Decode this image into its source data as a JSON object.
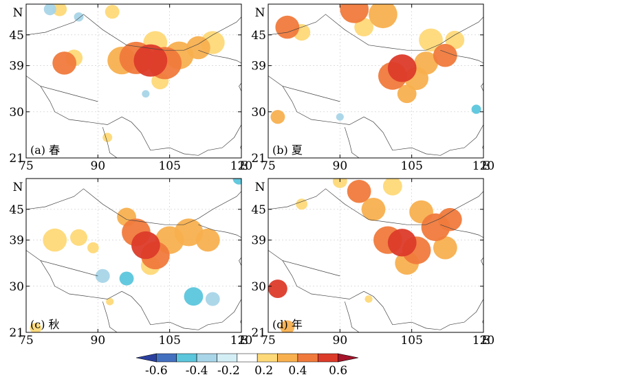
{
  "chart_data": {
    "type": "heatmap",
    "x_unit": "E",
    "y_unit": "N",
    "xlim": [
      75,
      120
    ],
    "ylim": [
      21,
      51
    ],
    "x_ticks": [
      75,
      90,
      105,
      120
    ],
    "y_ticks": [
      21,
      30,
      39,
      45
    ],
    "x_tick_labels": [
      "75",
      "90",
      "105",
      "120"
    ],
    "y_tick_labels": [
      "21",
      "30",
      "39",
      "45"
    ],
    "panels": [
      {
        "label": "(a) 春",
        "cells": [
          {
            "lon": 101,
            "lat": 40,
            "r": 3.5,
            "v": 0.6
          },
          {
            "lon": 98,
            "lat": 40.5,
            "r": 3.5,
            "v": 0.5
          },
          {
            "lon": 104,
            "lat": 39.5,
            "r": 3.5,
            "v": 0.5
          },
          {
            "lon": 107,
            "lat": 41,
            "r": 3,
            "v": 0.4
          },
          {
            "lon": 95,
            "lat": 40,
            "r": 3,
            "v": 0.4
          },
          {
            "lon": 111,
            "lat": 42.5,
            "r": 2.5,
            "v": 0.4
          },
          {
            "lon": 114,
            "lat": 43.5,
            "r": 2.5,
            "v": 0.3
          },
          {
            "lon": 102,
            "lat": 43.5,
            "r": 2.5,
            "v": 0.3
          },
          {
            "lon": 83,
            "lat": 39.5,
            "r": 2.5,
            "v": 0.5
          },
          {
            "lon": 85,
            "lat": 40.5,
            "r": 1.8,
            "v": 0.3
          },
          {
            "lon": 103,
            "lat": 36,
            "r": 1.8,
            "v": 0.3
          },
          {
            "lon": 82,
            "lat": 50,
            "r": 1.5,
            "v": 0.3
          },
          {
            "lon": 93,
            "lat": 49.5,
            "r": 1.5,
            "v": 0.3
          },
          {
            "lon": 80,
            "lat": 50,
            "r": 1.3,
            "v": -0.3
          },
          {
            "lon": 86,
            "lat": 48.5,
            "r": 1,
            "v": -0.3
          },
          {
            "lon": 100,
            "lat": 33.5,
            "r": 0.8,
            "v": -0.3
          },
          {
            "lon": 92,
            "lat": 25,
            "r": 1,
            "v": 0.3
          }
        ]
      },
      {
        "label": "(b) 夏",
        "cells": [
          {
            "lon": 103,
            "lat": 38.5,
            "r": 3,
            "v": 0.6
          },
          {
            "lon": 101,
            "lat": 37,
            "r": 3,
            "v": 0.5
          },
          {
            "lon": 106,
            "lat": 36.5,
            "r": 2.5,
            "v": 0.4
          },
          {
            "lon": 108,
            "lat": 39.5,
            "r": 2.5,
            "v": 0.4
          },
          {
            "lon": 104,
            "lat": 33.5,
            "r": 2,
            "v": 0.4
          },
          {
            "lon": 112,
            "lat": 41,
            "r": 2.5,
            "v": 0.5
          },
          {
            "lon": 109,
            "lat": 44,
            "r": 2.5,
            "v": 0.3
          },
          {
            "lon": 114,
            "lat": 44,
            "r": 2,
            "v": 0.3
          },
          {
            "lon": 79,
            "lat": 46.5,
            "r": 2.5,
            "v": 0.5
          },
          {
            "lon": 82,
            "lat": 45.5,
            "r": 1.8,
            "v": 0.3
          },
          {
            "lon": 93,
            "lat": 50,
            "r": 3,
            "v": 0.5
          },
          {
            "lon": 99,
            "lat": 49,
            "r": 3,
            "v": 0.4
          },
          {
            "lon": 95,
            "lat": 46.5,
            "r": 2,
            "v": 0.3
          },
          {
            "lon": 77,
            "lat": 29,
            "r": 1.5,
            "v": 0.4
          },
          {
            "lon": 118.5,
            "lat": 30.5,
            "r": 1,
            "v": -0.4
          },
          {
            "lon": 90,
            "lat": 29,
            "r": 0.8,
            "v": -0.3
          }
        ]
      },
      {
        "label": "(c) 秋",
        "cells": [
          {
            "lon": 100,
            "lat": 38,
            "r": 3,
            "v": 0.6
          },
          {
            "lon": 98,
            "lat": 40.5,
            "r": 3,
            "v": 0.5
          },
          {
            "lon": 102,
            "lat": 36,
            "r": 3,
            "v": 0.5
          },
          {
            "lon": 105,
            "lat": 39,
            "r": 3,
            "v": 0.4
          },
          {
            "lon": 96,
            "lat": 43.5,
            "r": 2,
            "v": 0.4
          },
          {
            "lon": 109,
            "lat": 40.5,
            "r": 3,
            "v": 0.4
          },
          {
            "lon": 113,
            "lat": 39,
            "r": 2.5,
            "v": 0.4
          },
          {
            "lon": 101,
            "lat": 34,
            "r": 2,
            "v": 0.3
          },
          {
            "lon": 81,
            "lat": 39,
            "r": 2.5,
            "v": 0.3
          },
          {
            "lon": 86,
            "lat": 39.5,
            "r": 1.8,
            "v": 0.3
          },
          {
            "lon": 89,
            "lat": 37.5,
            "r": 1.2,
            "v": 0.3
          },
          {
            "lon": 119.5,
            "lat": 51,
            "r": 1.3,
            "v": -0.4
          },
          {
            "lon": 96,
            "lat": 31.5,
            "r": 1.5,
            "v": -0.4
          },
          {
            "lon": 91,
            "lat": 32,
            "r": 1.5,
            "v": -0.3
          },
          {
            "lon": 110,
            "lat": 28,
            "r": 2,
            "v": -0.4
          },
          {
            "lon": 114,
            "lat": 27.5,
            "r": 1.5,
            "v": -0.3
          },
          {
            "lon": 77,
            "lat": 21.8,
            "r": 1.2,
            "v": 0.3
          },
          {
            "lon": 92.5,
            "lat": 27,
            "r": 0.8,
            "v": 0.3
          }
        ]
      },
      {
        "label": "(d) 年",
        "cells": [
          {
            "lon": 103,
            "lat": 38.5,
            "r": 3,
            "v": 0.6
          },
          {
            "lon": 100,
            "lat": 39,
            "r": 3,
            "v": 0.5
          },
          {
            "lon": 106,
            "lat": 37,
            "r": 3,
            "v": 0.5
          },
          {
            "lon": 110,
            "lat": 41.5,
            "r": 3,
            "v": 0.5
          },
          {
            "lon": 113,
            "lat": 43,
            "r": 2.5,
            "v": 0.5
          },
          {
            "lon": 107,
            "lat": 44.5,
            "r": 2.5,
            "v": 0.4
          },
          {
            "lon": 104,
            "lat": 34.5,
            "r": 2.5,
            "v": 0.4
          },
          {
            "lon": 112,
            "lat": 37.5,
            "r": 2.5,
            "v": 0.4
          },
          {
            "lon": 94,
            "lat": 48.5,
            "r": 2.5,
            "v": 0.5
          },
          {
            "lon": 97,
            "lat": 45,
            "r": 2.5,
            "v": 0.4
          },
          {
            "lon": 101,
            "lat": 49.5,
            "r": 2,
            "v": 0.3
          },
          {
            "lon": 90,
            "lat": 50.5,
            "r": 1.5,
            "v": 0.3
          },
          {
            "lon": 77,
            "lat": 29.5,
            "r": 2,
            "v": 0.6
          },
          {
            "lon": 82,
            "lat": 46,
            "r": 1.2,
            "v": 0.3
          },
          {
            "lon": 79,
            "lat": 22,
            "r": 1.5,
            "v": 0.4
          },
          {
            "lon": 96,
            "lat": 27.5,
            "r": 0.8,
            "v": 0.3
          }
        ]
      }
    ],
    "colorbar": {
      "levels": [
        -0.6,
        -0.5,
        -0.4,
        -0.3,
        -0.2,
        0.2,
        0.3,
        0.4,
        0.5,
        0.6
      ],
      "colors": [
        "#2b3f9e",
        "#4470c0",
        "#5bc6dc",
        "#a8d5e8",
        "#d4eef5",
        "#ffffff",
        "#fed978",
        "#f8b04f",
        "#f07a3c",
        "#dc3b2a",
        "#a5142a"
      ],
      "tick_labels": [
        "-0.6",
        "-0.4",
        "-0.2",
        "0.2",
        "0.4",
        "0.6"
      ]
    }
  }
}
